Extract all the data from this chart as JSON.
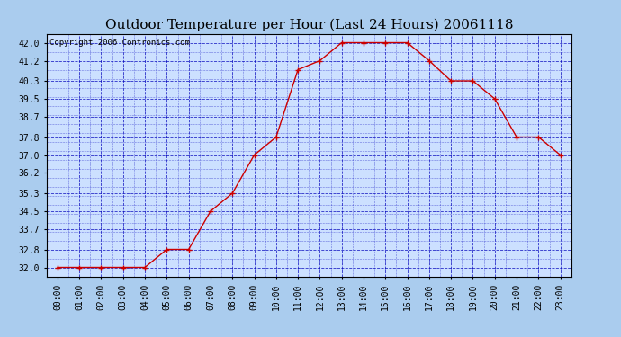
{
  "title": "Outdoor Temperature per Hour (Last 24 Hours) 20061118",
  "copyright_text": "Copyright 2006 Contronics.com",
  "hours": [
    "00:00",
    "01:00",
    "02:00",
    "03:00",
    "04:00",
    "05:00",
    "06:00",
    "07:00",
    "08:00",
    "09:00",
    "10:00",
    "11:00",
    "12:00",
    "13:00",
    "14:00",
    "15:00",
    "16:00",
    "17:00",
    "18:00",
    "19:00",
    "20:00",
    "21:00",
    "22:00",
    "23:00"
  ],
  "temperatures": [
    32.0,
    32.0,
    32.0,
    32.0,
    32.0,
    32.8,
    32.8,
    34.5,
    35.3,
    37.0,
    37.8,
    40.8,
    41.2,
    42.0,
    42.0,
    42.0,
    42.0,
    41.2,
    40.3,
    40.3,
    39.5,
    37.8,
    37.8,
    37.0
  ],
  "y_ticks": [
    32.0,
    32.8,
    33.7,
    34.5,
    35.3,
    36.2,
    37.0,
    37.8,
    38.7,
    39.5,
    40.3,
    41.2,
    42.0
  ],
  "ylim": [
    31.6,
    42.4
  ],
  "line_color": "#cc0000",
  "marker": "+",
  "marker_color": "#cc0000",
  "bg_color": "#aaccee",
  "plot_bg": "#cce0ff",
  "grid_color": "#0000bb",
  "title_fontsize": 11,
  "tick_fontsize": 7,
  "copyright_fontsize": 6.5
}
